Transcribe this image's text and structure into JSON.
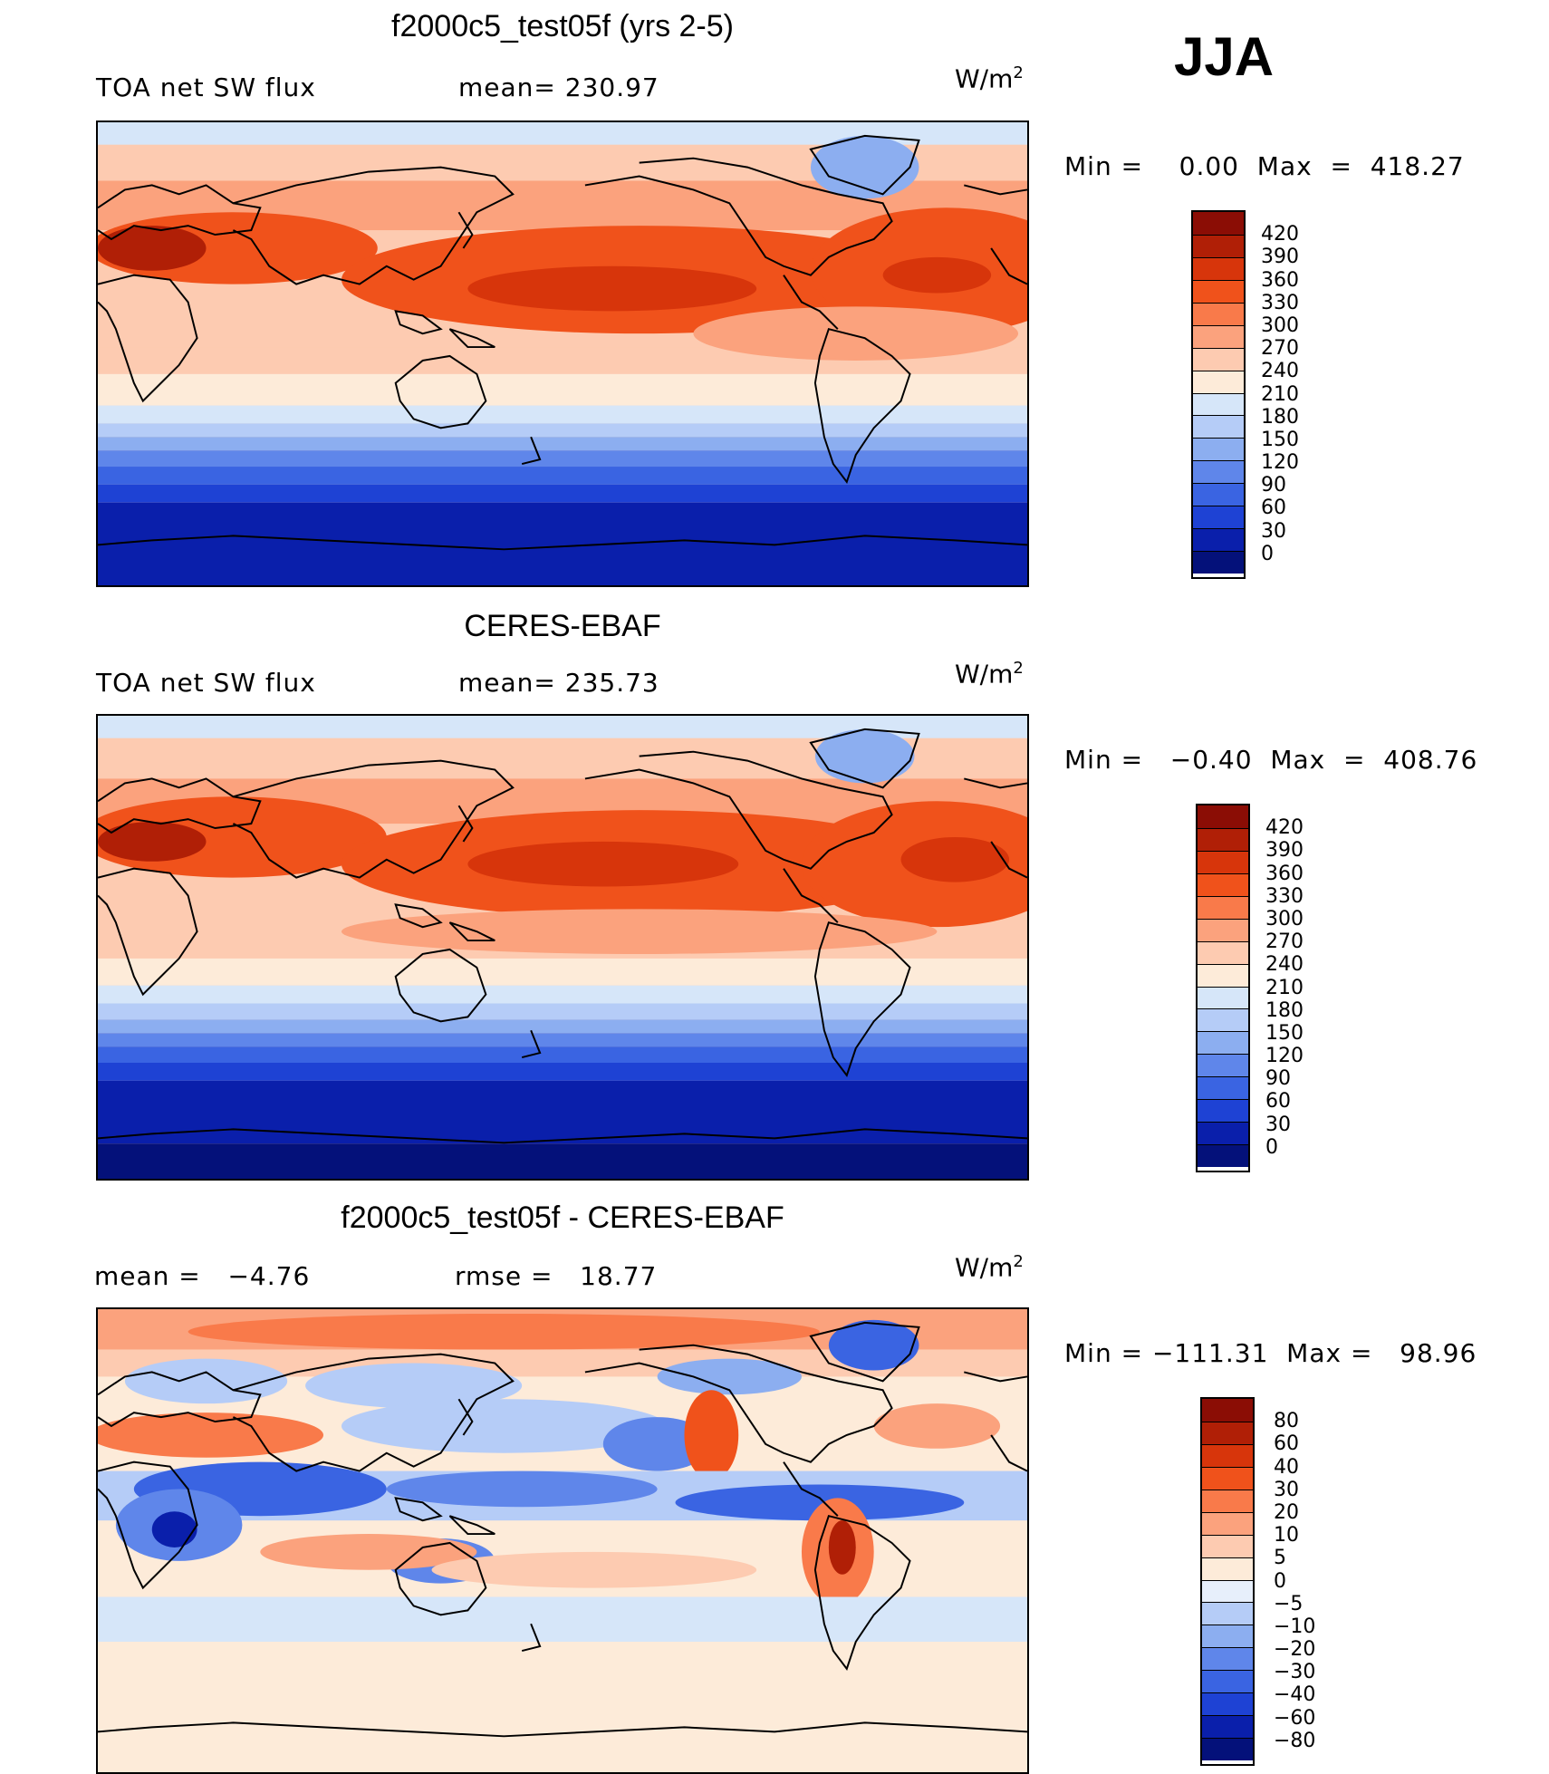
{
  "season": "JJA",
  "panels": [
    {
      "title": "f2000c5_test05f (yrs 2-5)",
      "left_label": "TOA net SW flux",
      "center_label": "mean= 230.97",
      "units_base": "W/m",
      "units_exp": "2",
      "minmax": "Min =    0.00  Max  =  418.27",
      "colorbar": {
        "labels": [
          "420",
          "390",
          "360",
          "330",
          "300",
          "270",
          "240",
          "210",
          "180",
          "150",
          "120",
          "90",
          "60",
          "30",
          "0"
        ],
        "colors": [
          "#8b0d05",
          "#b01f06",
          "#d7350b",
          "#f0521b",
          "#f97a4a",
          "#fba27d",
          "#fdcbb1",
          "#fdebd9",
          "#d6e6f9",
          "#b5ccf7",
          "#8caef0",
          "#5f86ea",
          "#3a64e2",
          "#1e42d4",
          "#0a1fab",
          "#04117a"
        ]
      }
    },
    {
      "title": "CERES-EBAF",
      "left_label": "TOA net SW flux",
      "center_label": "mean= 235.73",
      "units_base": "W/m",
      "units_exp": "2",
      "minmax": "Min =   −0.40  Max  =  408.76",
      "colorbar": {
        "labels": [
          "420",
          "390",
          "360",
          "330",
          "300",
          "270",
          "240",
          "210",
          "180",
          "150",
          "120",
          "90",
          "60",
          "30",
          "0"
        ],
        "colors": [
          "#8b0d05",
          "#b01f06",
          "#d7350b",
          "#f0521b",
          "#f97a4a",
          "#fba27d",
          "#fdcbb1",
          "#fdebd9",
          "#d6e6f9",
          "#b5ccf7",
          "#8caef0",
          "#5f86ea",
          "#3a64e2",
          "#1e42d4",
          "#0a1fab",
          "#04117a"
        ]
      }
    },
    {
      "title": "f2000c5_test05f - CERES-EBAF",
      "left_label": "mean =   −4.76",
      "center_label": "rmse =   18.77",
      "units_base": "W/m",
      "units_exp": "2",
      "minmax": "Min = −111.31  Max =   98.96",
      "colorbar": {
        "labels": [
          "80",
          "60",
          "40",
          "30",
          "20",
          "10",
          "5",
          "0",
          "−5",
          "−10",
          "−20",
          "−30",
          "−40",
          "−60",
          "−80"
        ],
        "colors": [
          "#8b0d05",
          "#b01f06",
          "#d7350b",
          "#f0521b",
          "#f97a4a",
          "#fba27d",
          "#fdcbb1",
          "#fdebd9",
          "#e7effb",
          "#b5ccf7",
          "#8caef0",
          "#5f86ea",
          "#3a64e2",
          "#1e42d4",
          "#0a1fab",
          "#04117a"
        ]
      }
    }
  ]
}
